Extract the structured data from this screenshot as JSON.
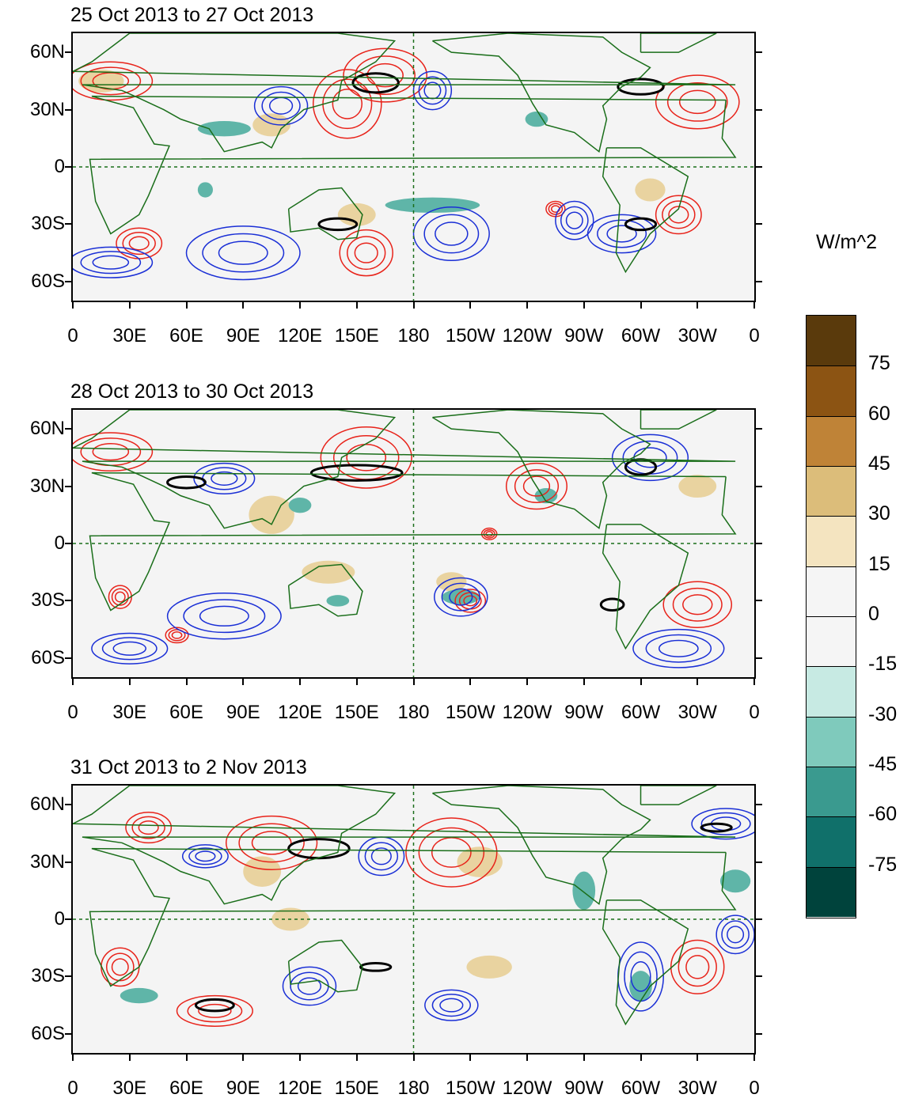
{
  "panels": [
    {
      "title": "25 Oct 2013 to 27 Oct 2013"
    },
    {
      "title": "28 Oct 2013 to 30 Oct 2013"
    },
    {
      "title": "31 Oct 2013 to 2 Nov 2013"
    }
  ],
  "axes": {
    "y_ticks": [
      "60N",
      "30N",
      "0",
      "30S",
      "60S"
    ],
    "x_ticks": [
      "0",
      "30E",
      "60E",
      "90E",
      "120E",
      "150E",
      "180",
      "150W",
      "120W",
      "90W",
      "60W",
      "30W",
      "0"
    ]
  },
  "colorbar": {
    "units": "W/m^2",
    "labels": [
      "75",
      "60",
      "45",
      "30",
      "15",
      "0",
      "-15",
      "-30",
      "-45",
      "-60",
      "-75"
    ],
    "colors": [
      "#5a3a0c",
      "#8c5413",
      "#bf8337",
      "#dcbd7a",
      "#f4e4c0",
      "#f5f5f5",
      "#f5f5f5",
      "#c7eae3",
      "#7fcabc",
      "#3a9a8f",
      "#10706a",
      "#00433c"
    ]
  },
  "contour_colors": {
    "positive": "#e8231a",
    "negative": "#1a2fd6",
    "significance": "#000000",
    "coast": "#1a6e1a"
  }
}
